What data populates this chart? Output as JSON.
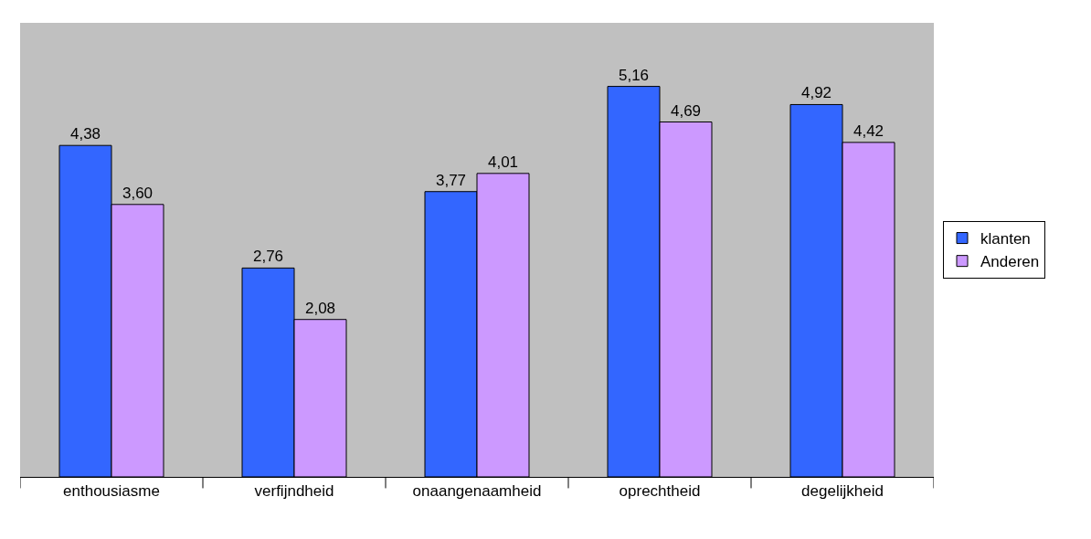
{
  "chart_data": {
    "type": "bar",
    "categories": [
      "enthousiasme",
      "verfijndheid",
      "onaangenaamheid",
      "oprechtheid",
      "degelijkheid"
    ],
    "series": [
      {
        "name": "klanten",
        "color": "#3366ff",
        "values": [
          4.38,
          2.76,
          3.77,
          5.16,
          4.92
        ],
        "value_labels": [
          "4,38",
          "2,76",
          "3,77",
          "5,16",
          "4,92"
        ]
      },
      {
        "name": "Anderen",
        "color": "#cc99ff",
        "values": [
          3.6,
          2.08,
          4.01,
          4.69,
          4.42
        ],
        "value_labels": [
          "3,60",
          "2,08",
          "4,01",
          "4,69",
          "4,42"
        ]
      }
    ],
    "ylim": [
      0,
      6
    ],
    "tick_labels": "x",
    "grid": false,
    "legend": "right"
  }
}
